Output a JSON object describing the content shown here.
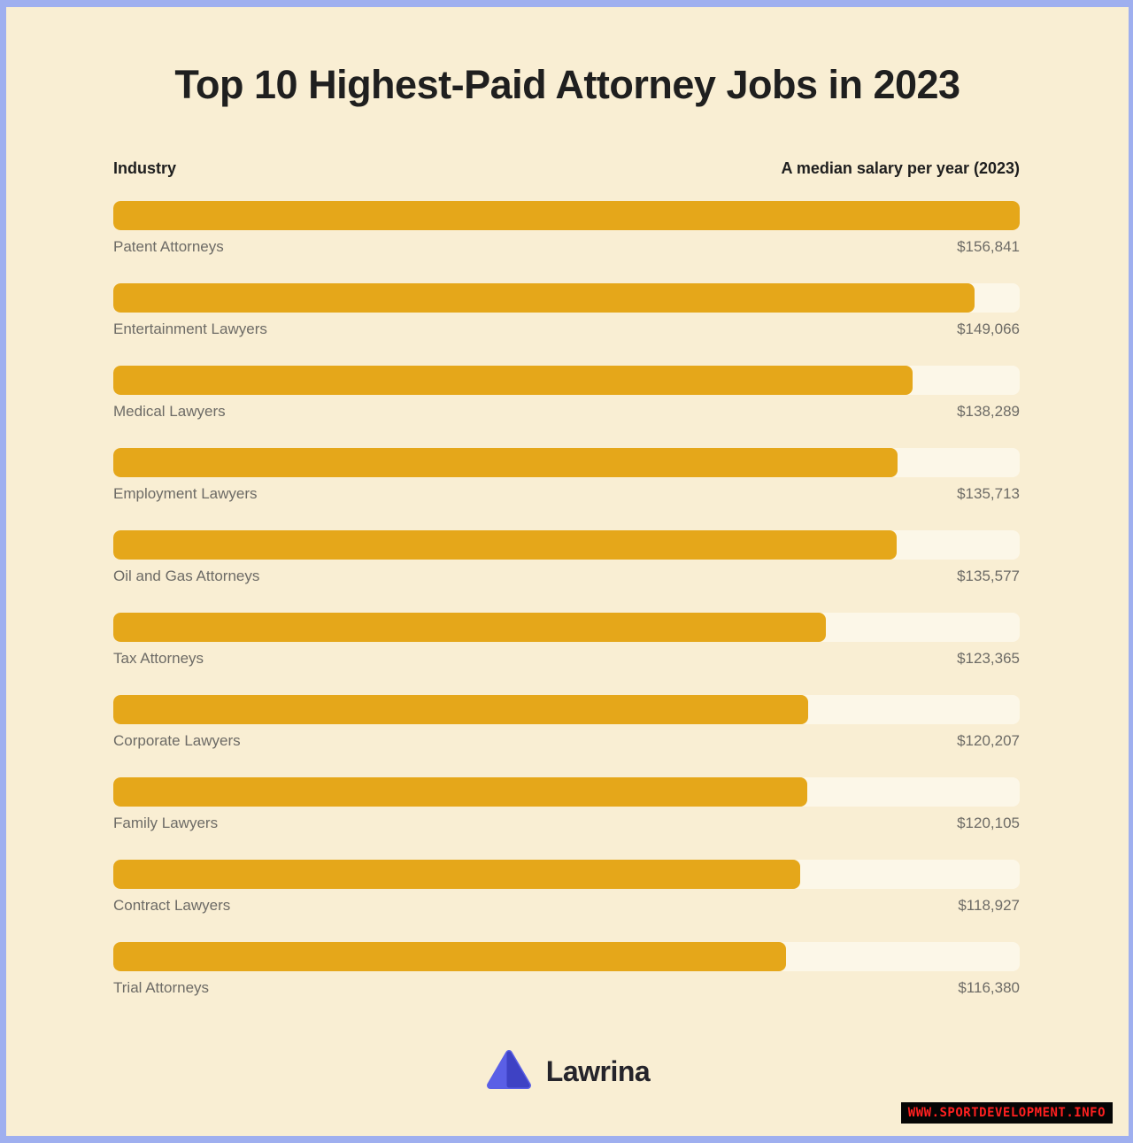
{
  "title": "Top 10 Highest-Paid Attorney Jobs in 2023",
  "table_header": {
    "left": "Industry",
    "right": "A median salary per year (2023)"
  },
  "chart_data": {
    "type": "bar",
    "orientation": "horizontal",
    "title": "Top 10 Highest-Paid Attorney Jobs in 2023",
    "xlabel": "A median salary per year (2023)",
    "ylabel": "Industry",
    "categories": [
      "Patent Attorneys",
      "Entertainment Lawyers",
      "Medical Lawyers",
      "Employment Lawyers",
      "Oil and Gas Attorneys",
      "Tax Attorneys",
      "Corporate Lawyers",
      "Family Lawyers",
      "Contract Lawyers",
      "Trial Attorneys"
    ],
    "values": [
      156841,
      149066,
      138289,
      135713,
      135577,
      123365,
      120207,
      120105,
      118927,
      116380
    ],
    "value_labels": [
      "$156,841",
      "$149,066",
      "$138,289",
      "$135,713",
      "$135,577",
      "$123,365",
      "$120,207",
      "$120,105",
      "$118,927",
      "$116,380"
    ],
    "max_value": 156841,
    "xlim": [
      0,
      156841
    ],
    "grid": false,
    "legend": false,
    "bar_color": "#E5A71A",
    "track_color": "#FCF7E8"
  },
  "footer": {
    "brand": "Lawrina",
    "logo_icon": "triangle-mountain-icon",
    "logo_color_light": "#5A5FE6",
    "logo_color_dark": "#3E42C4"
  },
  "watermark": {
    "text": "WWW.SPORTDEVELOPMENT.INFO",
    "text_color": "#FF2020",
    "background": "#050505"
  },
  "colors": {
    "page_background": "#F9EED3",
    "frame_border": "#9FAFEF",
    "title_text": "#1F1F1F",
    "label_text": "#6D6B66"
  }
}
